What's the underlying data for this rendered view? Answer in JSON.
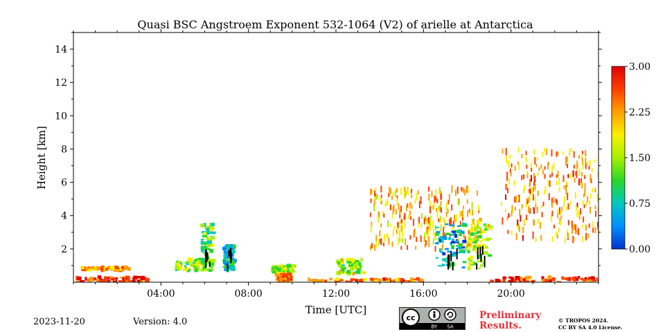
{
  "chart_data": {
    "type": "heatmap",
    "title": "Quasi BSC Angstroem Exponent 532-1064 (V2) of arielle at Antarctica",
    "xlabel": "Time [UTC]",
    "ylabel": "Height [km]",
    "xlim_hours": [
      0,
      24
    ],
    "ylim_km": [
      0,
      15
    ],
    "x_ticks": [
      {
        "hour": 4,
        "label": "04:00"
      },
      {
        "hour": 8,
        "label": "08:00"
      },
      {
        "hour": 12,
        "label": "12:00"
      },
      {
        "hour": 16,
        "label": "16:00"
      },
      {
        "hour": 20,
        "label": "20:00"
      }
    ],
    "y_ticks": [
      {
        "km": 2,
        "label": "2"
      },
      {
        "km": 4,
        "label": "4"
      },
      {
        "km": 6,
        "label": "6"
      },
      {
        "km": 8,
        "label": "8"
      },
      {
        "km": 10,
        "label": "10"
      },
      {
        "km": 12,
        "label": "12"
      },
      {
        "km": 14,
        "label": "14"
      }
    ],
    "colorbar": {
      "range": [
        0,
        3
      ],
      "ticks": [
        {
          "value": 0.0,
          "label": "0.00"
        },
        {
          "value": 0.75,
          "label": "0.75"
        },
        {
          "value": 1.5,
          "label": "1.50"
        },
        {
          "value": 2.25,
          "label": "2.25"
        },
        {
          "value": 3.0,
          "label": "3.00"
        }
      ],
      "colors": [
        "#0033cc",
        "#0090ff",
        "#00c8c0",
        "#28d828",
        "#a8f000",
        "#f8f000",
        "#ffa000",
        "#ff4000",
        "#e00000"
      ]
    },
    "regions": [
      {
        "name": "surface-layer-morning",
        "t0": 0.1,
        "t1": 3.3,
        "h0": 0.0,
        "h1": 0.3,
        "value": 2.7
      },
      {
        "name": "low-aerosol-morning",
        "t0": 0.3,
        "t1": 2.5,
        "h0": 0.7,
        "h1": 0.9,
        "value": 2.4
      },
      {
        "name": "aerosol-layer-05h",
        "t0": 4.6,
        "t1": 6.1,
        "h0": 0.7,
        "h1": 1.4,
        "value": 1.4
      },
      {
        "name": "plume-06h",
        "t0": 5.8,
        "t1": 6.3,
        "h0": 0.7,
        "h1": 3.5,
        "value": 1.2
      },
      {
        "name": "plume-07h",
        "t0": 6.8,
        "t1": 7.3,
        "h0": 0.7,
        "h1": 2.2,
        "value": 0.7
      },
      {
        "name": "layer-09h",
        "t0": 9.0,
        "t1": 10.0,
        "h0": 0.6,
        "h1": 1.0,
        "value": 1.4
      },
      {
        "name": "surface-09h",
        "t0": 9.2,
        "t1": 9.9,
        "h0": 0.0,
        "h1": 0.5,
        "value": 2.6
      },
      {
        "name": "layer-12h",
        "t0": 12.0,
        "t1": 13.2,
        "h0": 0.5,
        "h1": 1.4,
        "value": 1.5
      },
      {
        "name": "surface-midday",
        "t0": 10.5,
        "t1": 16.0,
        "h0": 0.0,
        "h1": 0.2,
        "value": 2.5
      },
      {
        "name": "scatter-afternoon",
        "t0": 13.5,
        "t1": 18.5,
        "h0": 2.0,
        "h1": 5.6,
        "value": 2.2
      },
      {
        "name": "cloud-17h",
        "t0": 16.5,
        "t1": 17.8,
        "h0": 0.8,
        "h1": 3.5,
        "value": 0.6
      },
      {
        "name": "cloud-18h",
        "t0": 18.0,
        "t1": 19.0,
        "h0": 0.8,
        "h1": 3.8,
        "value": 1.6
      },
      {
        "name": "surface-evening",
        "t0": 19.0,
        "t1": 24.0,
        "h0": 0.0,
        "h1": 0.3,
        "value": 2.7
      },
      {
        "name": "scatter-evening",
        "t0": 19.5,
        "t1": 24.0,
        "h0": 2.5,
        "h1": 8.0,
        "value": 2.3
      }
    ]
  },
  "footer": {
    "date": "2023-11-20",
    "version": "Version: 4.0",
    "preliminary_line1": "Preliminary",
    "preliminary_line2": "Results.",
    "copyright_line1": "© TROPOS 2024.",
    "copyright_line2": "CC BY SA 4.0 License.",
    "badge_by": "BY",
    "badge_sa": "SA"
  }
}
